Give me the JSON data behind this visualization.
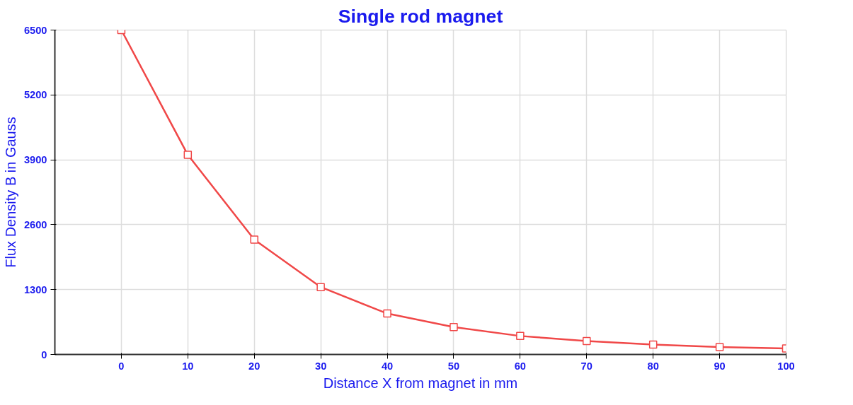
{
  "chart_data": {
    "type": "line",
    "title": "Single rod magnet",
    "xlabel": "Distance X from magnet in mm",
    "ylabel": "Flux Density B in Gauss",
    "x": [
      0,
      10,
      20,
      30,
      40,
      50,
      60,
      70,
      80,
      90,
      100
    ],
    "series": [
      {
        "color": "#f04848",
        "values": [
          6500,
          4000,
          2300,
          1350,
          820,
          550,
          370,
          270,
          200,
          150,
          120
        ]
      }
    ],
    "xlim": [
      -10,
      100
    ],
    "ylim": [
      0,
      6500
    ],
    "xticks": [
      0,
      10,
      20,
      30,
      40,
      50,
      60,
      70,
      80,
      90,
      100
    ],
    "yticks": [
      0,
      1300,
      2600,
      3900,
      5200,
      6500
    ],
    "grid": true,
    "marker": "square",
    "line_style": "solid"
  }
}
